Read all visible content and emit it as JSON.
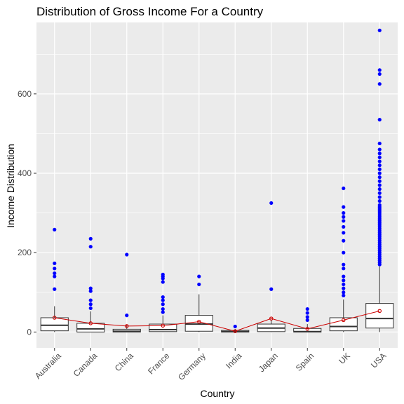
{
  "chart_data": {
    "type": "boxplot",
    "title": "Distribution of Gross Income For a Country",
    "xlabel": "Country",
    "ylabel": "Income Distribution",
    "ylim": [
      -40,
      780
    ],
    "yticks": [
      0,
      200,
      400,
      600
    ],
    "grid": true,
    "legend": "none",
    "colors": {
      "panel": "#ebebeb",
      "grid_major": "#ffffff",
      "box": "#333333",
      "outlier": "#0000ff",
      "mean": "#cc0000"
    },
    "categories": [
      "Australia",
      "Canada",
      "China",
      "France",
      "Germany",
      "India",
      "Japan",
      "Spain",
      "UK",
      "USA"
    ],
    "boxes": [
      {
        "q1": 3,
        "median": 17,
        "q3": 36,
        "whisker_low": 0,
        "whisker_high": 65,
        "mean": 36,
        "outliers": [
          108,
          140,
          148,
          160,
          173,
          258
        ]
      },
      {
        "q1": 0,
        "median": 8,
        "q3": 22,
        "whisker_low": 0,
        "whisker_high": 52,
        "mean": 22,
        "outliers": [
          60,
          70,
          80,
          103,
          110,
          215,
          235
        ]
      },
      {
        "q1": 0,
        "median": 2,
        "q3": 7,
        "whisker_low": 0,
        "whisker_high": 18,
        "mean": 15,
        "outliers": [
          42,
          195
        ]
      },
      {
        "q1": 1,
        "median": 6,
        "q3": 20,
        "whisker_low": 0,
        "whisker_high": 42,
        "mean": 16,
        "outliers": [
          50,
          58,
          70,
          80,
          88,
          126,
          135,
          140,
          145
        ]
      },
      {
        "q1": 2,
        "median": 20,
        "q3": 42,
        "whisker_low": 0,
        "whisker_high": 95,
        "mean": 26,
        "outliers": [
          120,
          140
        ]
      },
      {
        "q1": 0,
        "median": 1,
        "q3": 4,
        "whisker_low": 0,
        "whisker_high": 8,
        "mean": 2,
        "outliers": [
          14
        ]
      },
      {
        "q1": 1,
        "median": 10,
        "q3": 20,
        "whisker_low": 0,
        "whisker_high": 30,
        "mean": 34,
        "outliers": [
          108,
          325
        ]
      },
      {
        "q1": 0,
        "median": 1,
        "q3": 9,
        "whisker_low": 0,
        "whisker_high": 20,
        "mean": 8,
        "outliers": [
          30,
          38,
          48,
          58
        ]
      },
      {
        "q1": 3,
        "median": 14,
        "q3": 36,
        "whisker_low": 0,
        "whisker_high": 82,
        "mean": 30,
        "outliers": [
          92,
          100,
          110,
          120,
          130,
          140,
          160,
          170,
          200,
          230,
          250,
          265,
          280,
          290,
          300,
          315,
          362
        ]
      },
      {
        "q1": 10,
        "median": 34,
        "q3": 72,
        "whisker_low": 0,
        "whisker_high": 165,
        "mean": 53,
        "outliers": [
          170,
          175,
          180,
          185,
          190,
          195,
          200,
          205,
          210,
          215,
          220,
          225,
          230,
          235,
          240,
          245,
          250,
          255,
          260,
          265,
          270,
          275,
          280,
          285,
          290,
          295,
          300,
          305,
          310,
          315,
          320,
          330,
          340,
          350,
          360,
          370,
          380,
          390,
          400,
          410,
          420,
          430,
          440,
          450,
          460,
          475,
          535,
          625,
          650,
          660,
          760
        ]
      }
    ]
  }
}
